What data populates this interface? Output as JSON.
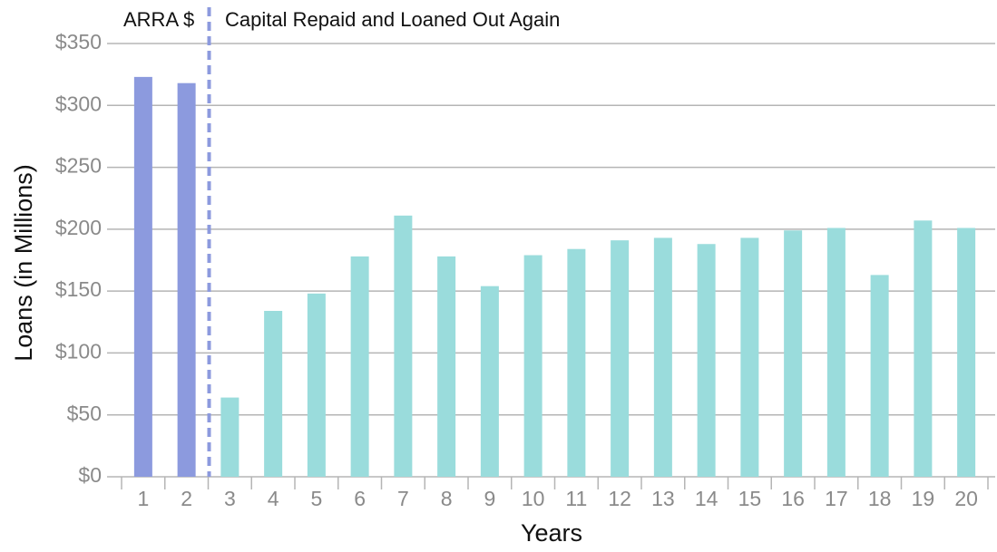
{
  "chart_data": {
    "type": "bar",
    "annotations": [
      "ARRA $",
      "Capital Repaid and Loaned Out Again"
    ],
    "x_label": "Years",
    "y_label": "Loans (in Millions)",
    "categories": [
      "1",
      "2",
      "3",
      "4",
      "5",
      "6",
      "7",
      "8",
      "9",
      "10",
      "11",
      "12",
      "13",
      "14",
      "15",
      "16",
      "17",
      "18",
      "19",
      "20"
    ],
    "values": [
      323,
      318,
      64,
      134,
      148,
      178,
      211,
      178,
      154,
      179,
      184,
      191,
      193,
      188,
      193,
      199,
      201,
      163,
      207,
      201
    ],
    "colors": [
      "#8c9ade",
      "#8c9ade",
      "#9adcdc",
      "#9adcdc",
      "#9adcdc",
      "#9adcdc",
      "#9adcdc",
      "#9adcdc",
      "#9adcdc",
      "#9adcdc",
      "#9adcdc",
      "#9adcdc",
      "#9adcdc",
      "#9adcdc",
      "#9adcdc",
      "#9adcdc",
      "#9adcdc",
      "#9adcdc",
      "#9adcdc",
      "#9adcdc"
    ],
    "ylim": [
      0,
      350
    ],
    "yticks": [
      {
        "value": 0,
        "label": "$0"
      },
      {
        "value": 50,
        "label": "$50"
      },
      {
        "value": 100,
        "label": "$100"
      },
      {
        "value": 150,
        "label": "$150"
      },
      {
        "value": 200,
        "label": "$200"
      },
      {
        "value": 250,
        "label": "$250"
      },
      {
        "value": 300,
        "label": "$300"
      },
      {
        "value": 350,
        "label": "$350"
      }
    ],
    "grid": true
  }
}
